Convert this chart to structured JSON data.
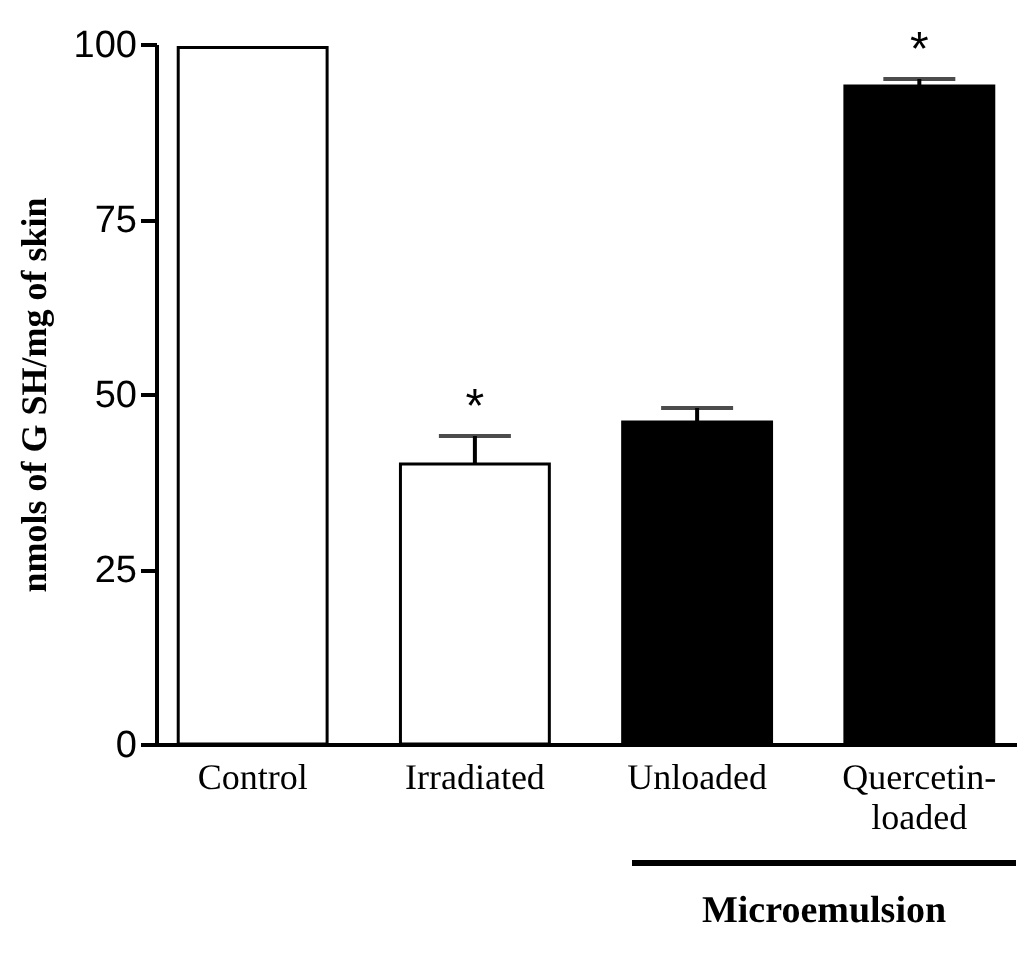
{
  "chart_data": {
    "type": "bar",
    "ylabel": "nmols of G SH/mg of skin",
    "categories": [
      "Control",
      "Irradiated",
      "Unloaded",
      "Quercetin-loaded"
    ],
    "values": [
      99.5,
      40,
      46,
      94
    ],
    "colors": [
      "#ffffff",
      "#ffffff",
      "#000000",
      "#000000"
    ],
    "errors": [
      null,
      [
        40,
        44
      ],
      [
        46,
        48
      ],
      [
        94,
        95
      ]
    ],
    "ylim": [
      0,
      100
    ],
    "yticks": [
      0,
      25,
      50,
      75,
      100
    ],
    "grid": false,
    "annotations": [
      {
        "text": "*",
        "x": "Irradiated",
        "y": 44
      },
      {
        "text": "*",
        "x": "Quercetin-loaded",
        "y": 95
      },
      "Microemulsion"
    ]
  }
}
